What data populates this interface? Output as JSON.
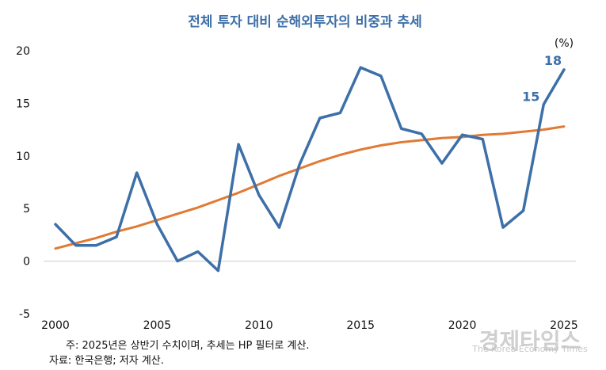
{
  "chart_data": {
    "type": "line",
    "title": "전체 투자 대비 순해외투자의 비중과 추세",
    "unit": "(%)",
    "x": [
      2000,
      2001,
      2002,
      2003,
      2004,
      2005,
      2006,
      2007,
      2008,
      2009,
      2010,
      2011,
      2012,
      2013,
      2014,
      2015,
      2016,
      2017,
      2018,
      2019,
      2020,
      2021,
      2022,
      2023,
      2024,
      2025
    ],
    "xticks": [
      2000,
      2005,
      2010,
      2015,
      2020,
      2025
    ],
    "xtick_labels": [
      "2000",
      "2005",
      "2010",
      "2015",
      "2020",
      "2025"
    ],
    "ylim": [
      -5,
      20
    ],
    "yticks": [
      -5,
      0,
      5,
      10,
      15,
      20
    ],
    "ytick_labels": [
      "-5",
      "0",
      "5",
      "10",
      "15",
      "20"
    ],
    "grid": false,
    "series": [
      {
        "color": "#3d6fa8",
        "values": [
          3.5,
          1.5,
          1.5,
          2.3,
          8.4,
          3.5,
          0.0,
          0.9,
          -0.9,
          11.1,
          6.3,
          3.2,
          9.2,
          13.6,
          14.1,
          18.4,
          17.6,
          12.6,
          12.1,
          9.3,
          12.0,
          11.6,
          3.2,
          4.8,
          14.9,
          18.2
        ]
      },
      {
        "color": "#e07a34",
        "values": [
          1.2,
          1.7,
          2.2,
          2.8,
          3.3,
          3.9,
          4.5,
          5.1,
          5.8,
          6.5,
          7.3,
          8.1,
          8.8,
          9.5,
          10.1,
          10.6,
          11.0,
          11.3,
          11.5,
          11.7,
          11.8,
          12.0,
          12.1,
          12.3,
          12.5,
          12.8
        ]
      }
    ],
    "annotations": [
      {
        "text": "15",
        "x": 2024,
        "y": 14.9
      },
      {
        "text": "18",
        "x": 2025,
        "y": 18.2
      }
    ],
    "notes": [
      "주: 2025년은 상반기 수치이며, 추세는 HP 필터로 계산.",
      "자료: 한국은행; 저자 계산."
    ]
  },
  "watermark": {
    "line1": "경제타임스",
    "line2": "The Korea Economy Times"
  }
}
